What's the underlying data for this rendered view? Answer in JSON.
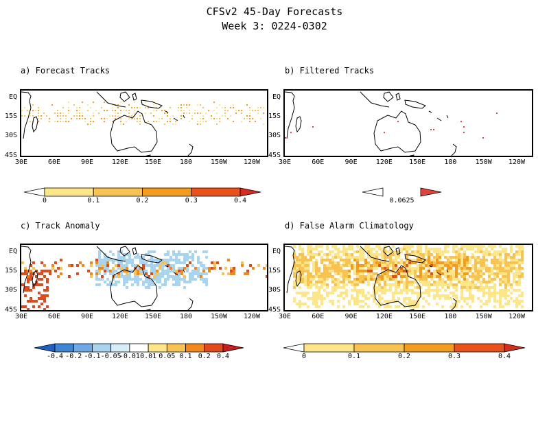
{
  "title": {
    "line1": "CFSv2 45-Day Forecasts",
    "line2": "Week 3: 0224-0302"
  },
  "axes": {
    "lat_labels": [
      "EQ",
      "15S",
      "30S",
      "45S"
    ],
    "lon_labels": [
      "30E",
      "60E",
      "90E",
      "120E",
      "150E",
      "180",
      "150W",
      "120W"
    ]
  },
  "panels": {
    "a": {
      "title": "a) Forecast Tracks",
      "colorbar": {
        "ticks": [
          "0",
          "0.1",
          "0.2",
          "0.3",
          "0.4"
        ],
        "colors": [
          "#ffffff",
          "#fde68a",
          "#f9c354",
          "#f39c1f",
          "#e8511a",
          "#d62c20"
        ]
      }
    },
    "b": {
      "title": "b) Filtered Tracks",
      "colorbar": {
        "ticks": [
          "0.0625"
        ],
        "colors": [
          "#ffffff",
          "#e0433d"
        ]
      }
    },
    "c": {
      "title": "c) Track Anomaly",
      "colorbar": {
        "ticks": [
          "-0.4",
          "-0.2",
          "-0.1",
          "-0.05",
          "-0.01",
          "0.01",
          "0.05",
          "0.1",
          "0.2",
          "0.4"
        ],
        "colors": [
          "#1f5fbf",
          "#3d86d6",
          "#6ea8e6",
          "#a8d4f0",
          "#d6eef8",
          "#ffffff",
          "#fde68a",
          "#f9c354",
          "#f0881e",
          "#e04a1c",
          "#c41e1e"
        ]
      }
    },
    "d": {
      "title": "d) False Alarm Climatology",
      "colorbar": {
        "ticks": [
          "0",
          "0.1",
          "0.2",
          "0.3",
          "0.4"
        ],
        "colors": [
          "#ffffff",
          "#fde68a",
          "#f9c354",
          "#f39c1f",
          "#e8511a",
          "#d62c20"
        ]
      }
    }
  }
}
